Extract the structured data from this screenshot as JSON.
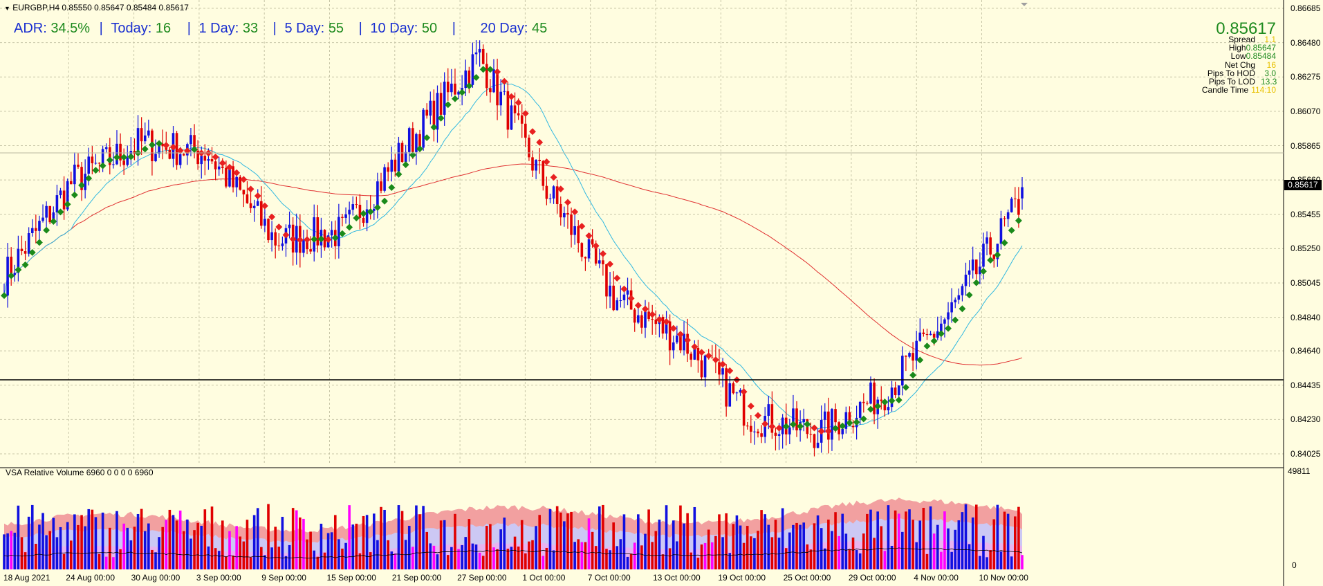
{
  "header": {
    "symbol": "EURGBP,H4",
    "ohlc": "0.85550 0.85647 0.85484 0.85617",
    "collapse_icon": "triangle-down-icon"
  },
  "adr_line": {
    "adr_label": "ADR:",
    "adr_value": "34.5%",
    "today_label": "Today:",
    "today_value": "16",
    "day1_label": "1 Day:",
    "day1_value": "33",
    "day5_label": "5 Day:",
    "day5_value": "55",
    "day10_label": "10 Day:",
    "day10_value": "50",
    "day20_label": "20 Day:",
    "day20_value": "45",
    "separator": "|"
  },
  "info_panel": {
    "price": "0.85617",
    "spread_label": "Spread",
    "spread_value": "1.1",
    "high_label": "High",
    "high_value": "0.85647",
    "low_label": "Low",
    "low_value": "0.85484",
    "netchg_label": "Net Chg",
    "netchg_value": "16",
    "pips_hod_label": "Pips To HOD",
    "pips_hod_value": "3.0",
    "pips_lod_label": "Pips To LOD",
    "pips_lod_value": "13.3",
    "candle_time_label": "Candle Time",
    "candle_time_value": "114:10"
  },
  "current_price_tag": "0.85617",
  "price_axis": [
    "0.86685",
    "0.86480",
    "0.86275",
    "0.86070",
    "0.85865",
    "0.85660",
    "0.85455",
    "0.85250",
    "0.85045",
    "0.84840",
    "0.84640",
    "0.84435",
    "0.84230",
    "0.84025"
  ],
  "volume_panel": {
    "title": "VSA Relative Volume 6960 0 0 0 0 6960",
    "axis_max": "49811",
    "axis_min": "0"
  },
  "time_axis": [
    "18 Aug 2021",
    "24 Aug 00:00",
    "30 Aug 00:00",
    "3 Sep 00:00",
    "9 Sep 00:00",
    "15 Sep 00:00",
    "21 Sep 00:00",
    "27 Sep 00:00",
    "1 Oct 00:00",
    "7 Oct 00:00",
    "13 Oct 00:00",
    "19 Oct 00:00",
    "25 Oct 00:00",
    "29 Oct 00:00",
    "4 Nov 00:00",
    "10 Nov 00:00"
  ],
  "colors": {
    "background": "#fffde0",
    "bull": "#1010e0",
    "bear": "#e00000",
    "trend_up": "#1a8a1a",
    "trend_down": "#e82020",
    "ma_fast": "#30b8e0",
    "ma_slow": "#e03030",
    "grid": "#c8c6a8",
    "adr_text": "#1a2fd0",
    "adr_value": "#1e8a1e",
    "vol_band_outer": "#f2a0a0",
    "vol_band_mid": "#ccc8f4",
    "vol_band_inner": "#e8b4f0",
    "vol_magenta": "#ff00ff"
  },
  "chart_data": {
    "type": "candlestick",
    "symbol": "EURGBP",
    "timeframe": "H4",
    "ylim": [
      0.84025,
      0.86685
    ],
    "x": [
      "18 Aug 2021",
      "24 Aug 00:00",
      "30 Aug 00:00",
      "3 Sep 00:00",
      "9 Sep 00:00",
      "15 Sep 00:00",
      "21 Sep 00:00",
      "27 Sep 00:00",
      "1 Oct 00:00",
      "7 Oct 00:00",
      "13 Oct 00:00",
      "19 Oct 00:00",
      "25 Oct 00:00",
      "29 Oct 00:00",
      "4 Nov 00:00",
      "10 Nov 00:00"
    ],
    "series": [
      {
        "values": [
          0.8508,
          0.8565,
          0.8588,
          0.8582,
          0.853,
          0.8535,
          0.859,
          0.864,
          0.856,
          0.8495,
          0.847,
          0.8425,
          0.8415,
          0.844,
          0.849,
          0.8555
        ]
      }
    ],
    "last": {
      "open": 0.8555,
      "high": 0.85647,
      "low": 0.85484,
      "close": 0.85617
    }
  }
}
